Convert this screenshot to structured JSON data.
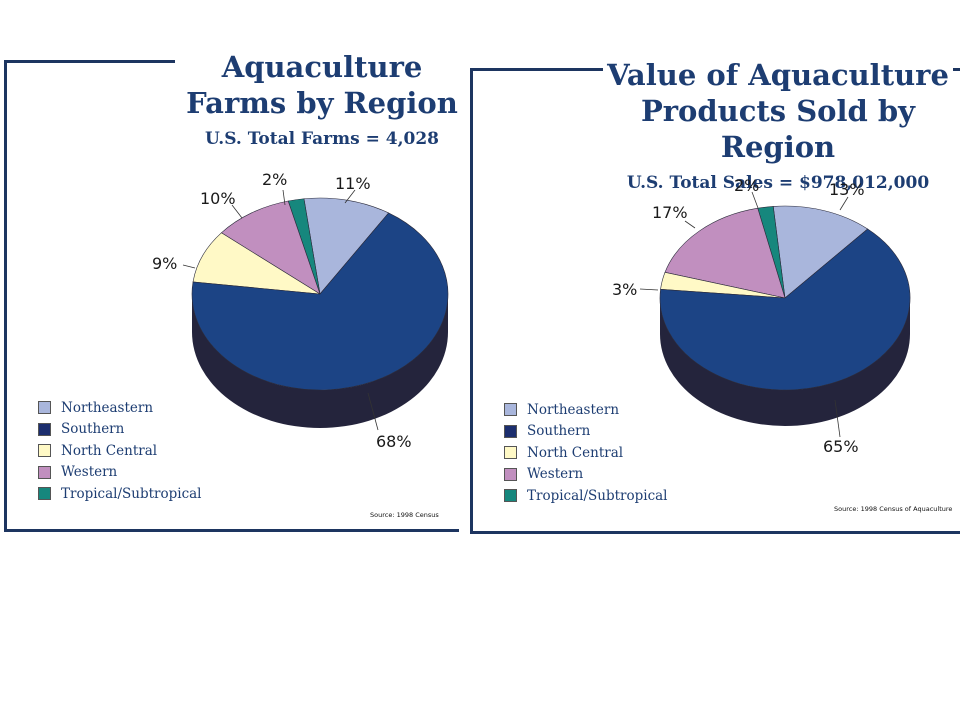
{
  "colors": {
    "Northeastern": "#a9b6dc",
    "Southern": "#1c4485",
    "North Central": "#fff9c6",
    "Western": "#c18fbf",
    "Tropical/Subtropical": "#16877d",
    "sides": "#24243c",
    "border": "#1d3560",
    "title": "#1d3d72"
  },
  "chart_data": [
    {
      "type": "pie",
      "title": "Aquaculture Farms by Region",
      "subtitle": "U.S. Total Farms = 4,028",
      "labels": [
        "Northeastern",
        "Southern",
        "North Central",
        "Western",
        "Tropical/Subtropical"
      ],
      "values": [
        11,
        68,
        9,
        10,
        2
      ],
      "value_labels": [
        "11%",
        "68%",
        "9%",
        "10%",
        "2%"
      ],
      "legend": [
        "Northeastern",
        "Southern",
        "North Central",
        "Western",
        "Tropical/Subtropical"
      ],
      "legend_position": "bottom-left",
      "source": "Source: 1998 Census"
    },
    {
      "type": "pie",
      "title": "Value of Aquaculture Products Sold by Region",
      "subtitle": "U.S. Total Sales = $978,012,000",
      "labels": [
        "Northeastern",
        "Southern",
        "North Central",
        "Western",
        "Tropical/Subtropical"
      ],
      "values": [
        13,
        65,
        3,
        17,
        2
      ],
      "value_labels": [
        "13%",
        "65%",
        "3%",
        "17%",
        "2%"
      ],
      "legend": [
        "Northeastern",
        "Southern",
        "North Central",
        "Western",
        "Tropical/Subtropical"
      ],
      "legend_position": "bottom-left",
      "source": "Source: 1998 Census of Aquaculture"
    }
  ]
}
